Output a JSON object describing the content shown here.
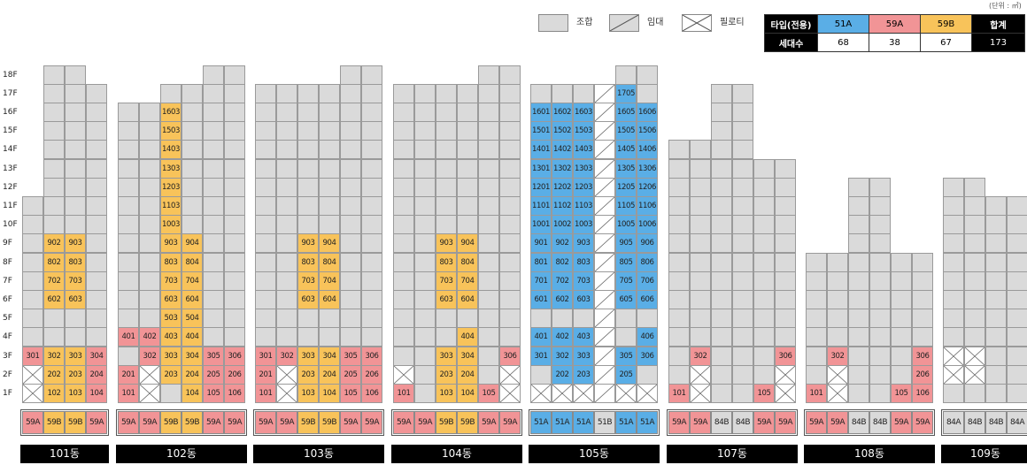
{
  "unit_note": "(단위 : ㎡)",
  "legend": [
    {
      "label": "조합",
      "icon": "gray-box-icon"
    },
    {
      "label": "임대",
      "icon": "diagonal-box-icon"
    },
    {
      "label": "필로티",
      "icon": "cross-box-icon"
    }
  ],
  "summary": {
    "type_header": "타입(전용)",
    "count_header": "세대수",
    "total_header": "합계",
    "types": [
      "51A",
      "59A",
      "59B"
    ],
    "counts": [
      "68",
      "38",
      "67"
    ],
    "total": "173",
    "colors": {
      "51A": "#5aaee6",
      "59A": "#f19496",
      "59B": "#f8c35a",
      "header": "#000000"
    }
  },
  "floor_labels": [
    "18F",
    "17F",
    "16F",
    "15F",
    "14F",
    "13F",
    "12F",
    "11F",
    "10F",
    "9F",
    "8F",
    "7F",
    "6F",
    "5F",
    "4F",
    "3F",
    "2F",
    "1F"
  ],
  "buildings": [
    {
      "name": "101동",
      "column_types": [
        "59A",
        "59B",
        "59B",
        "59A"
      ]
    },
    {
      "name": "102동",
      "column_types": [
        "59A",
        "59A",
        "59B",
        "59B",
        "59A",
        "59A"
      ]
    },
    {
      "name": "103동",
      "column_types": [
        "59A",
        "59A",
        "59B",
        "59B",
        "59A",
        "59A"
      ]
    },
    {
      "name": "104동",
      "column_types": [
        "59A",
        "59A",
        "59B",
        "59B",
        "59A",
        "59A"
      ]
    },
    {
      "name": "105동",
      "column_types": [
        "51A",
        "51A",
        "51A",
        "51B",
        "51A",
        "51A"
      ]
    },
    {
      "name": "107동",
      "column_types": [
        "59A",
        "59A",
        "84B",
        "84B",
        "59A",
        "59A"
      ]
    },
    {
      "name": "108동",
      "column_types": [
        "59A",
        "59A",
        "84B",
        "84B",
        "59A",
        "59A"
      ]
    },
    {
      "name": "109동",
      "column_types": [
        "84A",
        "84B",
        "84B",
        "84A"
      ]
    }
  ],
  "units": {
    "101동": {
      "59A": [
        "301"
      ],
      "59B": [
        "902",
        "903",
        "802",
        "803",
        "702",
        "703",
        "602",
        "603",
        "302",
        "303",
        "202",
        "203",
        "102",
        "103"
      ],
      "59A_right": [
        "304",
        "204",
        "104"
      ]
    },
    "102동": {
      "59A": [
        "401",
        "402",
        "201",
        "101"
      ],
      "59B": [
        "1603",
        "1503",
        "1403",
        "1303",
        "1203",
        "1103",
        "1003",
        "903",
        "904",
        "803",
        "804",
        "703",
        "704",
        "603",
        "604",
        "503",
        "504",
        "403",
        "404",
        "303",
        "304",
        "203",
        "204",
        "104"
      ],
      "59A_plain": [
        "302"
      ],
      "59A_right": [
        "305",
        "306",
        "205",
        "206",
        "105",
        "106"
      ]
    },
    "103동": {
      "59A": [
        "301",
        "302",
        "201",
        "101"
      ],
      "59B": [
        "903",
        "904",
        "803",
        "804",
        "703",
        "704",
        "603",
        "604",
        "303",
        "304",
        "203",
        "204",
        "103",
        "104"
      ],
      "59A_right": [
        "305",
        "306",
        "205",
        "206",
        "105",
        "106"
      ]
    },
    "104동": {
      "59A": [
        "101",
        "105",
        "306"
      ],
      "59B": [
        "903",
        "904",
        "803",
        "804",
        "703",
        "704",
        "603",
        "604",
        "404",
        "303",
        "304",
        "203",
        "204",
        "103",
        "104"
      ]
    },
    "105동": {
      "51A": [
        "1705",
        "1601",
        "1602",
        "1603",
        "1605",
        "1606",
        "1501",
        "1502",
        "1503",
        "1505",
        "1506",
        "1401",
        "1402",
        "1403",
        "1405",
        "1406",
        "1301",
        "1302",
        "1303",
        "1305",
        "1306",
        "1201",
        "1202",
        "1203",
        "1205",
        "1206",
        "1101",
        "1102",
        "1103",
        "1105",
        "1106",
        "1001",
        "1002",
        "1003",
        "1005",
        "1006",
        "901",
        "902",
        "903",
        "905",
        "906",
        "801",
        "802",
        "803",
        "805",
        "806",
        "701",
        "702",
        "703",
        "705",
        "706",
        "601",
        "602",
        "603",
        "605",
        "606",
        "401",
        "402",
        "403",
        "406",
        "301",
        "302",
        "303",
        "305",
        "306",
        "202",
        "203",
        "205"
      ]
    },
    "107동": {
      "59A": [
        "302",
        "306",
        "101",
        "105"
      ]
    },
    "108동": {
      "59A": [
        "302",
        "306",
        "206",
        "101",
        "105",
        "106"
      ]
    }
  }
}
